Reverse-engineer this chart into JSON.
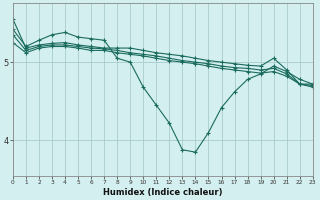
{
  "xlabel": "Humidex (Indice chaleur)",
  "background_color": "#d4efef",
  "line_color": "#1a6b5e",
  "grid_color": "#aacccc",
  "x_ticks": [
    0,
    1,
    2,
    3,
    4,
    5,
    6,
    7,
    8,
    9,
    10,
    11,
    12,
    13,
    14,
    15,
    16,
    17,
    18,
    19,
    20,
    21,
    22,
    23
  ],
  "y_ticks": [
    4,
    5
  ],
  "ylim": [
    3.55,
    5.75
  ],
  "xlim": [
    0,
    23
  ],
  "series": [
    [
      5.55,
      5.18,
      5.22,
      5.24,
      5.25,
      5.22,
      5.2,
      5.18,
      5.18,
      5.18,
      5.15,
      5.12,
      5.1,
      5.08,
      5.05,
      5.02,
      5.0,
      4.98,
      4.96,
      4.95,
      5.05,
      4.9,
      4.72,
      4.72
    ],
    [
      5.35,
      5.15,
      5.2,
      5.22,
      5.22,
      5.2,
      5.18,
      5.17,
      5.15,
      5.12,
      5.1,
      5.08,
      5.05,
      5.02,
      5.0,
      4.98,
      4.95,
      4.93,
      4.92,
      4.9,
      4.92,
      4.85,
      4.72,
      4.7
    ],
    [
      5.25,
      5.12,
      5.18,
      5.2,
      5.2,
      5.18,
      5.15,
      5.15,
      5.12,
      5.1,
      5.08,
      5.05,
      5.02,
      5.0,
      4.98,
      4.95,
      4.92,
      4.9,
      4.88,
      4.86,
      4.88,
      4.82,
      4.72,
      4.68
    ],
    [
      5.42,
      5.2,
      5.28,
      5.35,
      5.38,
      5.32,
      5.3,
      5.28,
      5.05,
      5.0,
      4.68,
      4.45,
      4.22,
      3.88,
      3.85,
      4.1,
      4.42,
      4.62,
      4.78,
      4.85,
      4.95,
      4.88,
      4.78,
      4.72
    ]
  ]
}
